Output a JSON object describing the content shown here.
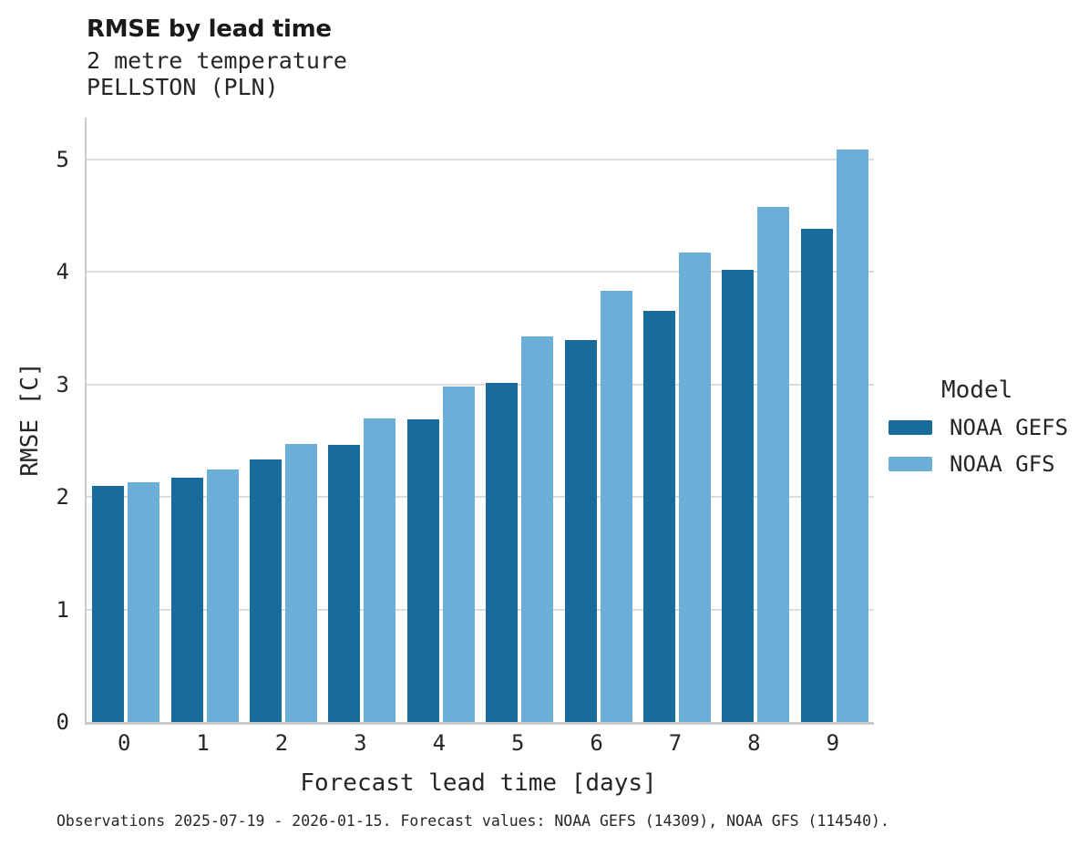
{
  "chart_data": {
    "type": "bar",
    "title": "RMSE by lead time",
    "subtitle": [
      "2 metre temperature",
      "PELLSTON (PLN)"
    ],
    "xlabel": "Forecast lead time [days]",
    "ylabel": "RMSE [C]",
    "categories": [
      "0",
      "1",
      "2",
      "3",
      "4",
      "5",
      "6",
      "7",
      "8",
      "9"
    ],
    "series": [
      {
        "name": "NOAA GEFS",
        "color": "#186C9C",
        "values": [
          2.1,
          2.17,
          2.33,
          2.46,
          2.69,
          3.01,
          3.39,
          3.65,
          4.02,
          4.38
        ]
      },
      {
        "name": "NOAA GFS",
        "color": "#6BAFD8",
        "values": [
          2.13,
          2.24,
          2.47,
          2.7,
          2.98,
          3.43,
          3.83,
          4.17,
          4.58,
          5.09
        ]
      }
    ],
    "ylim": [
      0,
      5.37
    ],
    "yticks": [
      0,
      1,
      2,
      3,
      4,
      5
    ],
    "grid": "horizontal",
    "legend_title": "Model",
    "legend_position": "right",
    "caption": "Observations 2025-07-19 - 2026-01-15. Forecast values: NOAA GEFS (14309), NOAA GFS (114540)."
  },
  "colors": {
    "grid": "#DCDCDC",
    "spine": "#CBCBCB",
    "text": "#262626",
    "title": "#1A1A1A"
  }
}
